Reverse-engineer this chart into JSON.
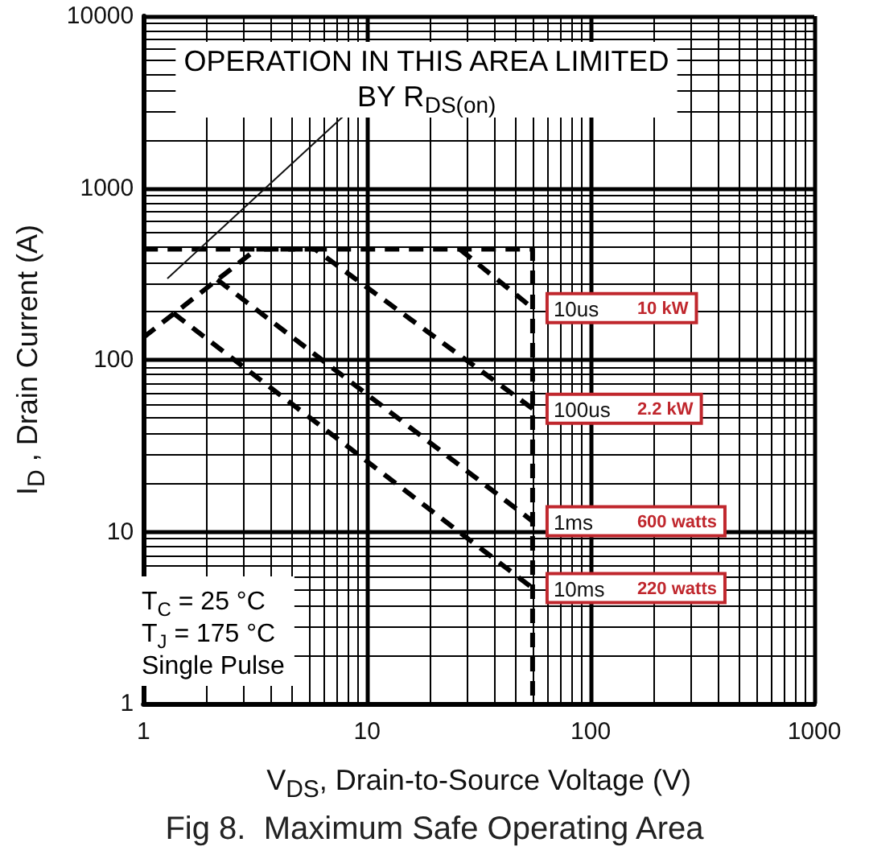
{
  "chart_data": {
    "type": "line",
    "title": "Fig 8.  Maximum Safe Operating Area",
    "xlabel": "V$_{DS}$, Drain-to-Source Voltage (V)",
    "ylabel": "I$_{D}$ , Drain Current (A)",
    "log": "xy",
    "grid": true,
    "legend": false,
    "line_style": "dashed",
    "marker": "none",
    "xlim": [
      1,
      1000
    ],
    "xticks": [
      1,
      10,
      100,
      1000
    ],
    "ylim": [
      1,
      10000
    ],
    "yticks": [
      1,
      10,
      100,
      1000,
      10000
    ],
    "series": [
      {
        "color": "#000000",
        "x": [
          1,
          55,
          55
        ],
        "values": [
          440,
          440,
          1
        ]
      },
      {
        "color": "#000000",
        "x": [
          1,
          3.2
        ],
        "values": [
          135,
          440
        ]
      },
      {
        "name": "10us",
        "color": "#000000",
        "x": [
          26,
          55
        ],
        "values": [
          440,
          200
        ]
      },
      {
        "name": "100us",
        "color": "#000000",
        "x": [
          3.2,
          5.85,
          55
        ],
        "values": [
          440,
          440,
          52
        ]
      },
      {
        "name": "1ms",
        "color": "#000000",
        "x": [
          2.14,
          55
        ],
        "values": [
          293,
          11.5
        ]
      },
      {
        "name": "10ms",
        "color": "#000000",
        "x": [
          1.36,
          55
        ],
        "values": [
          187,
          4.7
        ]
      }
    ],
    "annotations": [
      "OPERATION IN THIS AREA LIMITED\nBY R$_{DS(on)}$",
      "T$_{C}$ = 25 °C\nT$_{J}$ = 175 °C\nSingle Pulse",
      "10 kW",
      "2.2 kW",
      "600 watts",
      "220 watts"
    ]
  }
}
